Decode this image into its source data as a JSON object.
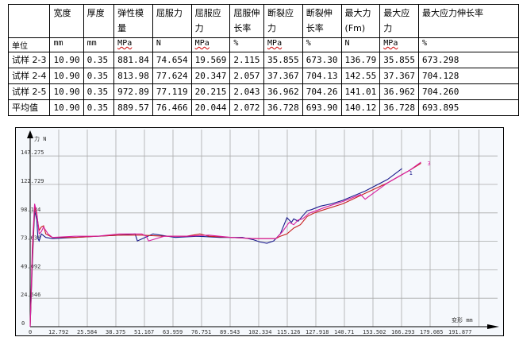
{
  "table": {
    "headers": [
      "",
      "宽度",
      "厚度",
      "弹性模量",
      "屈服力",
      "屈服应力",
      "屈服伸长率",
      "断裂应力",
      "断裂伸长率",
      "最大力(Fm)",
      "最大应力",
      "最大应力伸长率"
    ],
    "units": [
      "单位",
      "mm",
      "mm",
      "MPa",
      "N",
      "MPa",
      "%",
      "MPa",
      "%",
      "N",
      "MPa",
      "%"
    ],
    "rows": [
      [
        "试样 2-3",
        "10.90",
        "0.35",
        "881.84",
        "74.654",
        "19.569",
        "2.115",
        "35.855",
        "673.30",
        "136.79",
        "35.855",
        "673.298"
      ],
      [
        "试样 2-4",
        "10.90",
        "0.35",
        "813.98",
        "77.624",
        "20.347",
        "2.057",
        "37.367",
        "704.13",
        "142.55",
        "37.367",
        "704.128"
      ],
      [
        "试样 2-5",
        "10.90",
        "0.35",
        "972.89",
        "77.119",
        "20.215",
        "2.043",
        "36.962",
        "704.26",
        "141.01",
        "36.962",
        "704.260"
      ],
      [
        "平均值",
        "10.90",
        "0.35",
        "889.57",
        "76.466",
        "20.044",
        "2.072",
        "36.728",
        "693.90",
        "140.12",
        "36.728",
        "693.895"
      ]
    ]
  },
  "chart_data": {
    "type": "line",
    "ylabel": "力 N",
    "xlabel": "变形 mm",
    "xlim": [
      0,
      202
    ],
    "ylim": [
      0,
      165
    ],
    "grid": true,
    "xticks": [
      "0",
      "12.792",
      "25.584",
      "38.375",
      "51.167",
      "63.959",
      "76.751",
      "89.543",
      "102.334",
      "115.126",
      "127.918",
      "140.71",
      "153.502",
      "166.293",
      "179.085",
      "191.877"
    ],
    "yticks": [
      "0",
      "24.546",
      "49.092",
      "73.638",
      "98.184",
      "122.729",
      "147.275"
    ],
    "background": "#f5f8fc",
    "series": [
      {
        "color": "#1a1a8c",
        "end_label": "1",
        "x": [
          0,
          1,
          2,
          3,
          3.5,
          4,
          5,
          7,
          10,
          20,
          30,
          40,
          47,
          48,
          55,
          65,
          75,
          85,
          95,
          100,
          103,
          106,
          109,
          112,
          115,
          117,
          118,
          120,
          124,
          126,
          130,
          135,
          140,
          150,
          160,
          166.5
        ],
        "y": [
          0,
          55,
          100,
          92,
          76,
          74,
          80,
          77,
          76,
          77,
          78,
          79,
          80,
          74,
          80,
          77,
          78,
          77,
          77,
          75,
          73,
          72,
          74,
          80,
          94,
          90,
          93,
          91,
          100,
          101,
          104,
          106,
          109,
          117,
          127,
          136.4
        ]
      },
      {
        "color": "#c81e1e",
        "x": [
          0,
          1,
          2,
          3,
          4,
          5,
          6,
          7,
          10,
          20,
          30,
          40,
          50,
          60,
          70,
          76,
          80,
          90,
          100,
          105,
          108,
          110,
          112,
          115,
          118,
          121,
          124,
          127,
          130,
          140,
          150,
          160,
          170,
          175
        ],
        "y": [
          0,
          60,
          104,
          96,
          83,
          86,
          87,
          80,
          77,
          77,
          78,
          79,
          79,
          78,
          78,
          80,
          78,
          77,
          76,
          76,
          76,
          76,
          78,
          80,
          85,
          88,
          95,
          98,
          100,
          106,
          115,
          124,
          135,
          141
        ]
      },
      {
        "color": "#d81ea0",
        "end_label": "3",
        "x": [
          0,
          1,
          2,
          3,
          4,
          5,
          6,
          8,
          10,
          20,
          30,
          40,
          50,
          52,
          53,
          60,
          70,
          80,
          90,
          100,
          106,
          110,
          113,
          116,
          118,
          120,
          122,
          125,
          128,
          132,
          140,
          148,
          150,
          160,
          170,
          175
        ],
        "y": [
          0,
          70,
          106,
          98,
          80,
          82,
          86,
          80,
          77,
          78,
          78,
          80,
          80,
          78,
          74,
          78,
          78,
          79,
          77,
          76,
          76,
          76,
          82,
          90,
          88,
          92,
          93,
          98,
          100,
          103,
          108,
          114,
          110,
          124,
          135,
          142
        ]
      }
    ]
  }
}
